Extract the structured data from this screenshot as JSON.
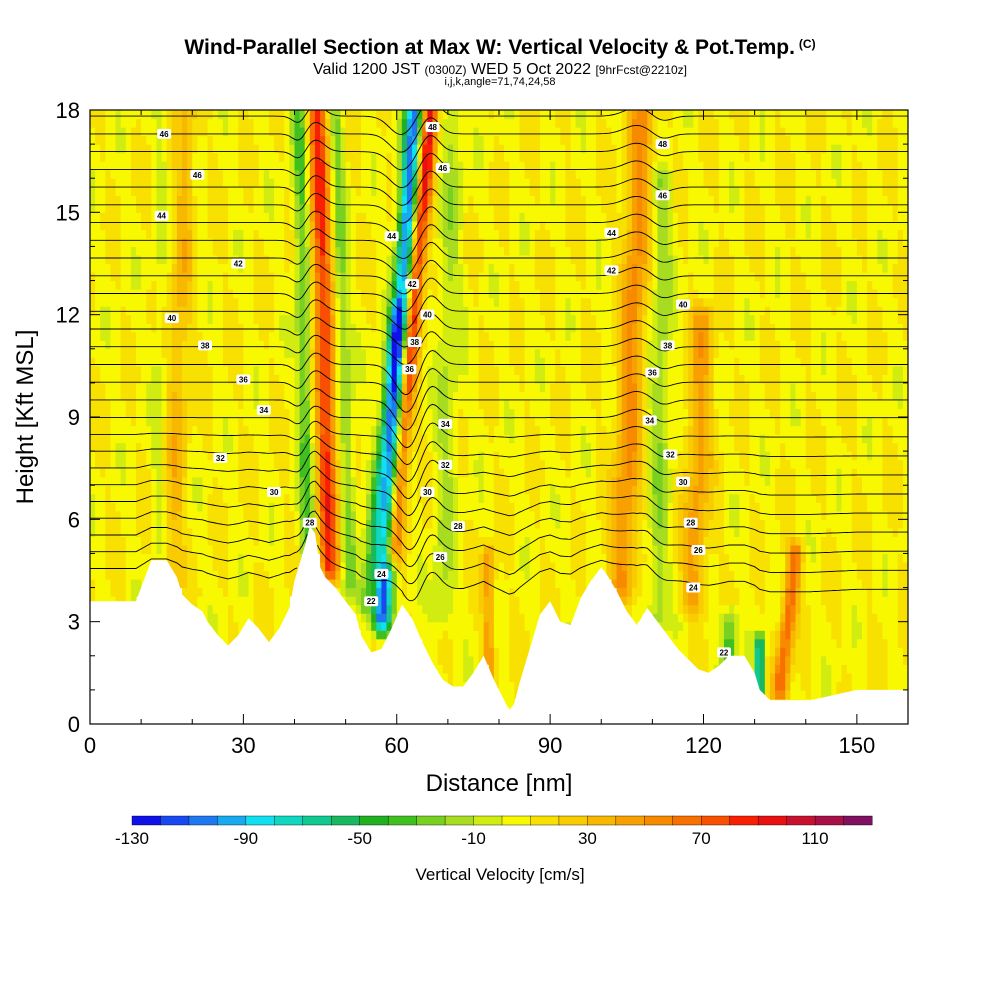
{
  "header": {
    "title": "Wind-Parallel Section at Max W: Vertical Velocity & Pot.Temp.",
    "title_mark": "(C)",
    "valid_prefix": "Valid 1200 JST",
    "valid_utc": "(0300Z)",
    "valid_date": "WED 5 Oct 2022",
    "forecast": "[9hrFcst@2210z]",
    "indices": "i,j,k,angle=71,74,24,58"
  },
  "chart_data": {
    "type": "heatmap",
    "xlabel": "Distance [nm]",
    "ylabel": "Height [Kft MSL]",
    "xlim": [
      0,
      160
    ],
    "ylim": [
      0,
      18
    ],
    "x_ticks": [
      "0",
      "30",
      "60",
      "90",
      "120",
      "150"
    ],
    "y_ticks": [
      "0",
      "3",
      "6",
      "9",
      "12",
      "15",
      "18"
    ],
    "colorbar": {
      "label": "Vertical Velocity [cm/s]",
      "tick_labels": [
        "-130",
        "-90",
        "-50",
        "-10",
        "30",
        "70",
        "110"
      ],
      "levels": [
        -130,
        -120,
        -110,
        -100,
        -90,
        -80,
        -70,
        -60,
        -50,
        -40,
        -30,
        -20,
        -10,
        0,
        10,
        20,
        30,
        40,
        50,
        60,
        70,
        80,
        90,
        100,
        110,
        120,
        130
      ],
      "colors": [
        "#1010e8",
        "#1848f0",
        "#1e78f0",
        "#18aaf0",
        "#10e0f0",
        "#10d8c0",
        "#10c890",
        "#18b860",
        "#20b020",
        "#40c020",
        "#78d020",
        "#a8dc20",
        "#d0ec10",
        "#f8f800",
        "#f8e000",
        "#f8cc00",
        "#f8b800",
        "#f8a000",
        "#f88a00",
        "#f87000",
        "#f85000",
        "#f82000",
        "#e81010",
        "#c81030",
        "#a81048",
        "#801060"
      ]
    },
    "terrain_profile": {
      "x": [
        0,
        9,
        11,
        12,
        15,
        17,
        18,
        20,
        22,
        23,
        25,
        27,
        29,
        31,
        33,
        35,
        37,
        39,
        40,
        42,
        43,
        44,
        45,
        46,
        48,
        50,
        52,
        53,
        55,
        57,
        59,
        61,
        63,
        65,
        67,
        69,
        71,
        73,
        75,
        77,
        79,
        81,
        82,
        83,
        84,
        86,
        88,
        90,
        92,
        94,
        96,
        98,
        100,
        101,
        103,
        105,
        107,
        109,
        111,
        113,
        115,
        117,
        119,
        121,
        123,
        125,
        128,
        130,
        131,
        133,
        137,
        141,
        144,
        147,
        150,
        155,
        160
      ],
      "y": [
        3.6,
        3.6,
        4.4,
        4.8,
        4.8,
        4.3,
        3.8,
        3.5,
        3.3,
        3.0,
        2.6,
        2.3,
        2.6,
        3.1,
        2.8,
        2.4,
        2.8,
        3.4,
        4.2,
        5.2,
        5.8,
        5.6,
        4.6,
        4.3,
        4.0,
        3.6,
        3.2,
        2.6,
        2.1,
        2.2,
        2.8,
        3.5,
        3.1,
        2.4,
        1.8,
        1.3,
        1.1,
        1.1,
        1.5,
        2.0,
        1.3,
        0.7,
        0.4,
        0.6,
        1.2,
        2.2,
        3.2,
        3.6,
        3.0,
        2.9,
        3.7,
        4.2,
        4.6,
        4.4,
        3.9,
        3.3,
        2.9,
        3.4,
        3.0,
        2.6,
        2.2,
        1.9,
        1.6,
        1.5,
        1.7,
        2.0,
        2.0,
        1.5,
        1.0,
        0.7,
        0.7,
        0.7,
        0.8,
        0.9,
        1.0,
        1.0,
        1.0
      ]
    },
    "velocity_features": [
      {
        "x_base": 43,
        "x_top": 41,
        "y_from": 2.5,
        "y_to": 18,
        "peak": -40,
        "width": 1.5
      },
      {
        "x_base": 47,
        "x_top": 44.5,
        "y_from": 4.5,
        "y_to": 18,
        "peak": 75,
        "width": 2.0
      },
      {
        "x_base": 51,
        "x_top": 48,
        "y_from": 4.0,
        "y_to": 18,
        "peak": -30,
        "width": 1.5
      },
      {
        "x_base": 57,
        "x_top": 63.5,
        "y_from": 3.0,
        "y_to": 18,
        "peak": -120,
        "width": 1.8
      },
      {
        "x_base": 59,
        "x_top": 66.5,
        "y_from": 5.0,
        "y_to": 18,
        "peak": 90,
        "width": 1.7
      },
      {
        "x_base": 54,
        "x_top": 60,
        "y_from": 3.5,
        "y_to": 12,
        "peak": -45,
        "width": 1.6
      },
      {
        "x_base": 69,
        "x_top": 71,
        "y_from": 3.0,
        "y_to": 18,
        "peak": -20,
        "width": 2.2
      },
      {
        "x_base": 78,
        "x_top": 78,
        "y_from": 1.0,
        "y_to": 5,
        "peak": 40,
        "width": 1.2
      },
      {
        "x_base": 104,
        "x_top": 108,
        "y_from": 4.0,
        "y_to": 18,
        "peak": 45,
        "width": 2.5
      },
      {
        "x_base": 111,
        "x_top": 112,
        "y_from": 3.0,
        "y_to": 16,
        "peak": -25,
        "width": 2.0
      },
      {
        "x_base": 118,
        "x_top": 120,
        "y_from": 3.5,
        "y_to": 12,
        "peak": 35,
        "width": 2.5
      },
      {
        "x_base": 125,
        "x_top": 125,
        "y_from": 1.5,
        "y_to": 3,
        "peak": -50,
        "width": 1.5
      },
      {
        "x_base": 131,
        "x_top": 131,
        "y_from": 0.8,
        "y_to": 2.3,
        "peak": -100,
        "width": 0.8
      },
      {
        "x_base": 135,
        "x_top": 138,
        "y_from": 1.0,
        "y_to": 5,
        "peak": 60,
        "width": 1.5
      },
      {
        "x_base": 16,
        "x_top": 19,
        "y_from": 4.0,
        "y_to": 18,
        "peak": 25,
        "width": 2.0
      },
      {
        "x_base": 13,
        "x_top": 14,
        "y_from": 3.6,
        "y_to": 18,
        "peak": -10,
        "width": 1.2
      }
    ],
    "theta_levels": [
      22,
      23,
      24,
      25,
      26,
      27,
      28,
      29,
      30,
      31,
      32,
      33,
      34,
      35,
      36,
      37,
      38,
      39,
      40,
      41,
      42,
      43,
      44,
      45,
      46,
      47,
      48
    ],
    "contour_labels": [
      {
        "x": 14.5,
        "y": 17.3,
        "text": "46"
      },
      {
        "x": 21,
        "y": 16.1,
        "text": "46"
      },
      {
        "x": 14,
        "y": 14.9,
        "text": "44"
      },
      {
        "x": 29,
        "y": 13.5,
        "text": "42"
      },
      {
        "x": 16,
        "y": 11.9,
        "text": "40"
      },
      {
        "x": 22.5,
        "y": 11.1,
        "text": "38"
      },
      {
        "x": 30,
        "y": 10.1,
        "text": "36"
      },
      {
        "x": 34,
        "y": 9.2,
        "text": "34"
      },
      {
        "x": 25.5,
        "y": 7.8,
        "text": "32"
      },
      {
        "x": 36,
        "y": 6.8,
        "text": "30"
      },
      {
        "x": 43,
        "y": 5.9,
        "text": "28"
      },
      {
        "x": 57,
        "y": 4.4,
        "text": "24"
      },
      {
        "x": 55,
        "y": 3.6,
        "text": "22"
      },
      {
        "x": 59,
        "y": 14.3,
        "text": "44"
      },
      {
        "x": 67,
        "y": 17.5,
        "text": "48"
      },
      {
        "x": 69,
        "y": 16.3,
        "text": "46"
      },
      {
        "x": 63,
        "y": 12.9,
        "text": "42"
      },
      {
        "x": 66,
        "y": 12.0,
        "text": "40"
      },
      {
        "x": 63.5,
        "y": 11.2,
        "text": "38"
      },
      {
        "x": 62.5,
        "y": 10.4,
        "text": "36"
      },
      {
        "x": 69.5,
        "y": 8.8,
        "text": "34"
      },
      {
        "x": 69.5,
        "y": 7.6,
        "text": "32"
      },
      {
        "x": 66,
        "y": 6.8,
        "text": "30"
      },
      {
        "x": 72,
        "y": 5.8,
        "text": "28"
      },
      {
        "x": 68.5,
        "y": 4.9,
        "text": "26"
      },
      {
        "x": 112,
        "y": 17.0,
        "text": "48"
      },
      {
        "x": 112,
        "y": 15.5,
        "text": "46"
      },
      {
        "x": 102,
        "y": 14.4,
        "text": "44"
      },
      {
        "x": 102,
        "y": 13.3,
        "text": "42"
      },
      {
        "x": 116,
        "y": 12.3,
        "text": "40"
      },
      {
        "x": 113,
        "y": 11.1,
        "text": "38"
      },
      {
        "x": 110,
        "y": 10.3,
        "text": "36"
      },
      {
        "x": 109.5,
        "y": 8.9,
        "text": "34"
      },
      {
        "x": 113.5,
        "y": 7.9,
        "text": "32"
      },
      {
        "x": 116,
        "y": 7.1,
        "text": "30"
      },
      {
        "x": 117.5,
        "y": 5.9,
        "text": "28"
      },
      {
        "x": 119,
        "y": 5.1,
        "text": "26"
      },
      {
        "x": 118,
        "y": 4.0,
        "text": "24"
      },
      {
        "x": 124,
        "y": 2.1,
        "text": "22"
      }
    ]
  }
}
